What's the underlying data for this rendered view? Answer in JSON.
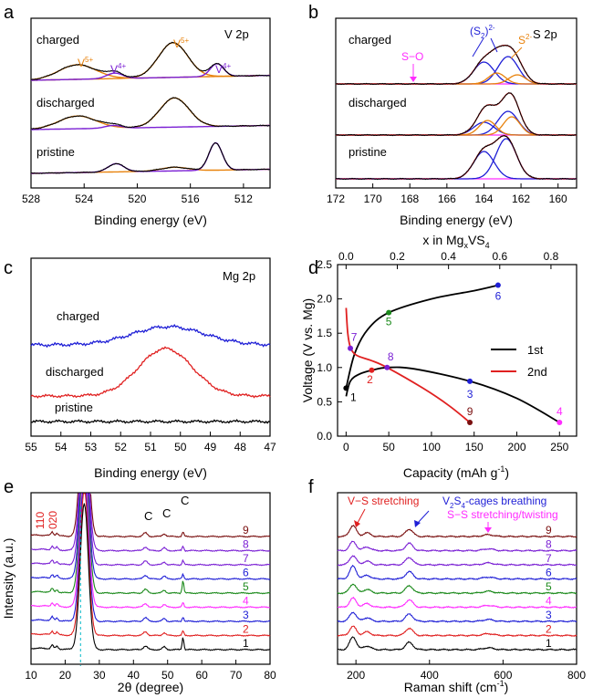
{
  "colors": {
    "black": "#000000",
    "orange": "#e8820c",
    "purple": "#7a1fd4",
    "blue": "#1f1fd6",
    "red": "#e02020",
    "magenta": "#ff2cff",
    "green": "#1c8a1c",
    "brown": "#7a1010",
    "cyan": "#00b7c7",
    "darkred": "#8b1a1a"
  },
  "chart_data": [
    {
      "panel": "a",
      "type": "line",
      "title": "V 2p",
      "xlabel": "Binding energy (eV)",
      "xlim": [
        528,
        510
      ],
      "xticks": [
        528,
        524,
        520,
        516,
        512
      ],
      "series": [
        {
          "name": "charged"
        },
        {
          "name": "discharged"
        },
        {
          "name": "pristine"
        }
      ],
      "annotations": [
        "V5+",
        "V4+",
        "V5+",
        "V4+"
      ]
    },
    {
      "panel": "b",
      "type": "line",
      "title": "S 2p",
      "xlabel": "Binding energy (eV)",
      "xlim": [
        172,
        159
      ],
      "xticks": [
        172,
        170,
        168,
        166,
        164,
        162,
        160
      ],
      "series": [
        {
          "name": "charged"
        },
        {
          "name": "discharged"
        },
        {
          "name": "pristine"
        }
      ],
      "annotations": [
        "S−O",
        "(S2)2-",
        "S2-"
      ]
    },
    {
      "panel": "c",
      "type": "line",
      "title": "Mg 2p",
      "xlabel": "Binding energy (eV)",
      "xlim": [
        55,
        47
      ],
      "xticks": [
        55,
        54,
        53,
        52,
        51,
        50,
        49,
        48,
        47
      ],
      "series": [
        {
          "name": "charged"
        },
        {
          "name": "discharged"
        },
        {
          "name": "pristine"
        }
      ]
    },
    {
      "panel": "d",
      "type": "line",
      "xlabel": "Capacity (mAh g-1)",
      "ylabel": "Voltage (V vs. Mg)",
      "top_xlabel": "x in MgxVS4",
      "xlim": [
        -10,
        270
      ],
      "ylim": [
        0,
        2.5
      ],
      "top_xlim": [
        -0.0333,
        0.9
      ],
      "xticks": [
        0,
        50,
        100,
        150,
        200,
        250
      ],
      "yticks": [
        0.0,
        0.5,
        1.0,
        1.5,
        2.0,
        2.5
      ],
      "top_xticks": [
        0.0,
        0.2,
        0.4,
        0.6,
        0.8
      ],
      "legend": [
        "1st",
        "2nd"
      ],
      "legend_position": "center-right",
      "series": [
        {
          "name": "1st",
          "points": [
            [
              0,
              0.58
            ],
            [
              5,
              0.8
            ],
            [
              15,
              0.9
            ],
            [
              30,
              0.96
            ],
            [
              48,
              1.0
            ],
            [
              80,
              0.98
            ],
            [
              145,
              0.8
            ],
            [
              200,
              0.55
            ],
            [
              250,
              0.2
            ]
          ]
        },
        {
          "name": "1st",
          "points": [
            [
              0,
              0.7
            ],
            [
              10,
              1.2
            ],
            [
              25,
              1.55
            ],
            [
              50,
              1.8
            ],
            [
              100,
              2.0
            ],
            [
              150,
              2.12
            ],
            [
              178,
              2.2
            ]
          ]
        },
        {
          "name": "2nd",
          "points": [
            [
              0,
              1.87
            ],
            [
              2,
              1.5
            ],
            [
              5,
              1.3
            ],
            [
              12,
              1.18
            ],
            [
              30,
              1.1
            ],
            [
              48,
              1.0
            ],
            [
              90,
              0.7
            ],
            [
              120,
              0.45
            ],
            [
              145,
              0.2
            ]
          ]
        }
      ],
      "marked_points": [
        {
          "label": "1",
          "x": 0,
          "y": 0.7,
          "color": "black"
        },
        {
          "label": "2",
          "x": 30,
          "y": 0.96,
          "color": "red"
        },
        {
          "label": "3",
          "x": 145,
          "y": 0.8,
          "color": "blue"
        },
        {
          "label": "4",
          "x": 250,
          "y": 0.2,
          "color": "magenta"
        },
        {
          "label": "5",
          "x": 50,
          "y": 1.8,
          "color": "green"
        },
        {
          "label": "6",
          "x": 178,
          "y": 2.2,
          "color": "blue"
        },
        {
          "label": "7",
          "x": 5,
          "y": 1.28,
          "color": "purple"
        },
        {
          "label": "8",
          "x": 48,
          "y": 1.0,
          "color": "purple"
        },
        {
          "label": "9",
          "x": 145,
          "y": 0.2,
          "color": "brown"
        }
      ]
    },
    {
      "panel": "e",
      "type": "line",
      "xlabel": "2θ (degree)",
      "ylabel": "Intensity (a.u.)",
      "xlim": [
        10,
        80
      ],
      "xticks": [
        10,
        20,
        30,
        40,
        50,
        60,
        70,
        80
      ],
      "series_labels": [
        "9",
        "8",
        "7",
        "6",
        "5",
        "4",
        "3",
        "2",
        "1"
      ],
      "annotations": [
        "110",
        "020",
        "C",
        "C",
        "C"
      ]
    },
    {
      "panel": "f",
      "type": "line",
      "xlabel": "Raman shift (cm-1)",
      "xlim": [
        150,
        800
      ],
      "xticks": [
        200,
        400,
        600,
        800
      ],
      "series_labels": [
        "9",
        "8",
        "7",
        "6",
        "5",
        "4",
        "3",
        "2",
        "1"
      ],
      "annotations": [
        "V−S stretching",
        "V2S4-cages breathing",
        "S−S stretching/twisting"
      ]
    }
  ],
  "text": {
    "panel_a": "a",
    "panel_b": "b",
    "panel_c": "c",
    "panel_d": "d",
    "panel_e": "e",
    "panel_f": "f",
    "a_title": "V 2p",
    "b_title": "S 2p",
    "c_title": "Mg 2p",
    "charged": "charged",
    "discharged": "discharged",
    "pristine": "pristine",
    "a_xlabel": "Binding energy (eV)",
    "b_xlabel": "Binding energy (eV)",
    "c_xlabel": "Binding energy (eV)",
    "d_xlabel": "Capacity (mAh g",
    "d_xlabel_sup": "-1",
    "d_xlabel_end": ")",
    "d_ylabel": "Voltage (V vs. Mg)",
    "d_top_1": "x in Mg",
    "d_top_2": "x",
    "d_top_3": "VS",
    "d_top_4": "4",
    "legend_1st": "1st",
    "legend_2nd": "2nd",
    "e_xlabel": "2θ (degree)",
    "e_ylabel": "Intensity (a.u.)",
    "f_xlabel": "Raman shift (cm",
    "f_xlabel_sup": "-1",
    "f_xlabel_end": ")",
    "v5": "V",
    "v5sup": "5+",
    "v4": "V",
    "v4sup": "4+",
    "so": "S−O",
    "s2a": "(S",
    "s2b": "2",
    "s2c": ")",
    "s2d": "2-",
    "s2m": "S",
    "s2msup": "2-",
    "e_110": "110",
    "e_020": "020",
    "e_c": "C",
    "f_vs": "V−S stretching",
    "f_v2s4a": "V",
    "f_v2s4b": "2",
    "f_v2s4c": "S",
    "f_v2s4d": "4",
    "f_v2s4e": "-cages breathing",
    "f_ss": "S−S stretching/twisting"
  }
}
